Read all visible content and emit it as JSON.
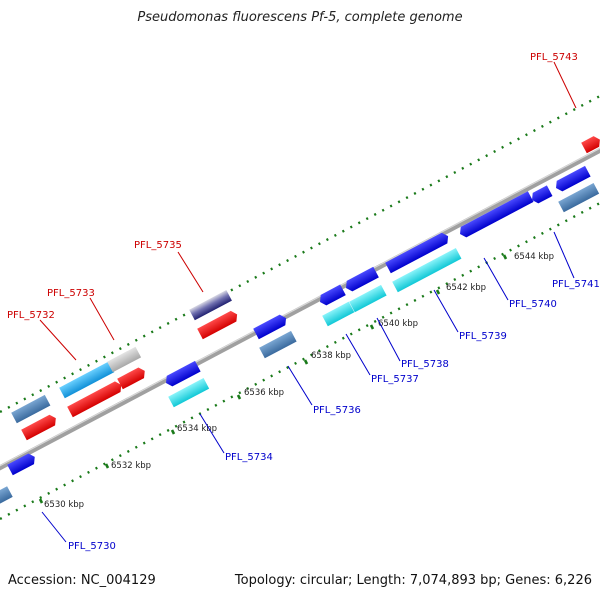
{
  "title": "Pseudomonas fluorescens Pf-5, complete genome",
  "footer": {
    "accession": "Accession: NC_004129",
    "topology": "Topology: circular; Length: 7,074,893 bp; Genes: 6,226"
  },
  "colors": {
    "backbone": "#8c8c8c",
    "tick": "#1a7a1a",
    "label_top": "#cc0000",
    "label_bottom": "#0000cc",
    "gene_red": "#ee1111",
    "gene_blue": "#1111dd",
    "gene_cyan": "#22dde8",
    "gene_steel": "#4a80b8",
    "gene_lightgray": "#c8c8c8",
    "gene_sky": "#22aaee",
    "gene_gradient": "#6a6aaa"
  },
  "scale_labels": [
    "6530 kbp",
    "6532 kbp",
    "6534 kbp",
    "6536 kbp",
    "6538 kbp",
    "6540 kbp",
    "6542 kbp",
    "6544 kbp"
  ],
  "gene_labels_top": [
    "PFL_5732",
    "PFL_5733",
    "PFL_5735",
    "PFL_5743"
  ],
  "gene_labels_bottom": [
    "PFL_5730",
    "PFL_5734",
    "PFL_5736",
    "PFL_5737",
    "PFL_5738",
    "PFL_5739",
    "PFL_5740",
    "PFL_5741"
  ]
}
